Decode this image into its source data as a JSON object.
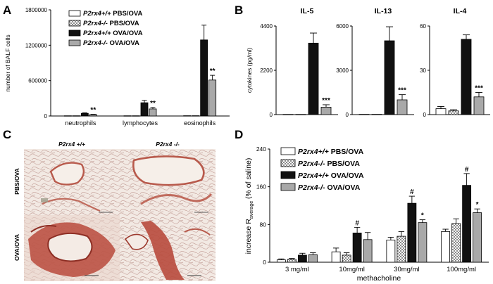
{
  "colors": {
    "white_fill": "#ffffff",
    "checker_fill": "#b8b8b8",
    "black_fill": "#111111",
    "gray_fill": "#a9a9a9",
    "tissue_red": "#b84a3c",
    "tissue_bg": "#efe4dc"
  },
  "panels": {
    "a": "A",
    "b": "B",
    "c": "C",
    "d": "D"
  },
  "legend": {
    "items": [
      {
        "genotype": "P2rx4+/+",
        "treatment": "PBS/OVA",
        "style": "white"
      },
      {
        "genotype": "P2rx4-/-",
        "treatment": "PBS/OVA",
        "style": "checker"
      },
      {
        "genotype": "P2rx4+/+",
        "treatment": "OVA/OVA",
        "style": "black"
      },
      {
        "genotype": "P2rx4-/-",
        "treatment": "OVA/OVA",
        "style": "gray"
      }
    ]
  },
  "histology": {
    "col_headers": [
      "P2rx4 +/+",
      "P2rx4 -/-"
    ],
    "row_labels": [
      "PBS/OVA",
      "OVA/OVA"
    ]
  },
  "chart_data": [
    {
      "id": "A",
      "type": "bar",
      "ylabel": "number of BALF cells",
      "ylim": [
        0,
        1800000
      ],
      "yticks": [
        0,
        600000,
        1200000,
        1800000
      ],
      "ytick_labels": [
        "0",
        "600000",
        "1200000",
        "1800000"
      ],
      "categories": [
        "neutrophils",
        "lymphocytes",
        "eosinophils"
      ],
      "series": [
        {
          "name": "P2rx4+/+ PBS/OVA",
          "values": [
            4000,
            4000,
            5000
          ],
          "errors": [
            0,
            0,
            0
          ]
        },
        {
          "name": "P2rx4-/- PBS/OVA",
          "values": [
            4000,
            4000,
            5000
          ],
          "errors": [
            0,
            0,
            0
          ]
        },
        {
          "name": "P2rx4+/+ OVA/OVA",
          "values": [
            45000,
            225000,
            1290000
          ],
          "errors": [
            8000,
            40000,
            250000
          ]
        },
        {
          "name": "P2rx4-/- OVA/OVA",
          "values": [
            25000,
            120000,
            610000
          ],
          "errors": [
            5000,
            25000,
            80000
          ]
        }
      ],
      "annotations": [
        {
          "category": "neutrophils",
          "series": 3,
          "text": "**"
        },
        {
          "category": "lymphocytes",
          "series": 3,
          "text": "**"
        },
        {
          "category": "eosinophils",
          "series": 3,
          "text": "**"
        }
      ]
    },
    {
      "id": "B-IL5",
      "type": "bar",
      "title": "IL-5",
      "ylabel": "cytokines (pg/ml)",
      "ylim": [
        0,
        4400
      ],
      "yticks": [
        0,
        2200,
        4400
      ],
      "ytick_labels": [
        "0",
        "2200",
        "4400"
      ],
      "series": [
        {
          "name": "P2rx4+/+ PBS/OVA",
          "values": [
            10
          ],
          "errors": [
            0
          ]
        },
        {
          "name": "P2rx4-/- PBS/OVA",
          "values": [
            10
          ],
          "errors": [
            0
          ]
        },
        {
          "name": "P2rx4+/+ OVA/OVA",
          "values": [
            3550
          ],
          "errors": [
            500
          ]
        },
        {
          "name": "P2rx4-/- OVA/OVA",
          "values": [
            370
          ],
          "errors": [
            120
          ]
        }
      ],
      "annotations": [
        {
          "series": 3,
          "text": "***"
        }
      ]
    },
    {
      "id": "B-IL13",
      "type": "bar",
      "title": "IL-13",
      "ylabel": "",
      "ylim": [
        0,
        6000
      ],
      "yticks": [
        0,
        3000,
        6000
      ],
      "ytick_labels": [
        "0",
        "3000",
        "6000"
      ],
      "series": [
        {
          "name": "P2rx4+/+ PBS/OVA",
          "values": [
            20
          ],
          "errors": [
            0
          ]
        },
        {
          "name": "P2rx4-/- PBS/OVA",
          "values": [
            20
          ],
          "errors": [
            0
          ]
        },
        {
          "name": "P2rx4+/+ OVA/OVA",
          "values": [
            5000
          ],
          "errors": [
            950
          ]
        },
        {
          "name": "P2rx4-/- OVA/OVA",
          "values": [
            1000
          ],
          "errors": [
            350
          ]
        }
      ],
      "annotations": [
        {
          "series": 3,
          "text": "***"
        }
      ]
    },
    {
      "id": "B-IL4",
      "type": "bar",
      "title": "IL-4",
      "ylabel": "",
      "ylim": [
        0,
        60
      ],
      "yticks": [
        0,
        30,
        60
      ],
      "ytick_labels": [
        "0",
        "30",
        "60"
      ],
      "series": [
        {
          "name": "P2rx4+/+ PBS/OVA",
          "values": [
            4
          ],
          "errors": [
            1.5
          ]
        },
        {
          "name": "P2rx4-/- PBS/OVA",
          "values": [
            2.5
          ],
          "errors": [
            0.8
          ]
        },
        {
          "name": "P2rx4+/+ OVA/OVA",
          "values": [
            51
          ],
          "errors": [
            3
          ]
        },
        {
          "name": "P2rx4-/- OVA/OVA",
          "values": [
            12
          ],
          "errors": [
            3
          ]
        }
      ],
      "annotations": [
        {
          "series": 3,
          "text": "***"
        }
      ]
    },
    {
      "id": "D",
      "type": "bar",
      "ylabel": "increase R",
      "ylabel_sub": "average",
      "ylabel_tail": " (% of saline)",
      "xlabel": "methacholine",
      "ylim": [
        0,
        240
      ],
      "yticks": [
        0,
        80,
        160,
        240
      ],
      "ytick_labels": [
        "0",
        "80",
        "160",
        "240"
      ],
      "categories": [
        "3 mg/ml",
        "10mg/ml",
        "30mg/ml",
        "100mg/ml"
      ],
      "series": [
        {
          "name": "P2rx4+/+ PBS/OVA",
          "values": [
            5,
            22,
            47,
            65
          ],
          "errors": [
            2,
            8,
            6,
            5
          ]
        },
        {
          "name": "P2rx4-/- PBS/OVA",
          "values": [
            6,
            15,
            55,
            82
          ],
          "errors": [
            2,
            5,
            10,
            10
          ]
        },
        {
          "name": "P2rx4+/+ OVA/OVA",
          "values": [
            15,
            62,
            125,
            163
          ],
          "errors": [
            4,
            12,
            15,
            25
          ]
        },
        {
          "name": "P2rx4-/- OVA/OVA",
          "values": [
            16,
            48,
            84,
            105
          ],
          "errors": [
            4,
            15,
            6,
            8
          ]
        }
      ],
      "annotations": [
        {
          "category": "10mg/ml",
          "series": 2,
          "text": "#"
        },
        {
          "category": "30mg/ml",
          "series": 2,
          "text": "#"
        },
        {
          "category": "30mg/ml",
          "series": 3,
          "text": "*"
        },
        {
          "category": "100mg/ml",
          "series": 2,
          "text": "#"
        },
        {
          "category": "100mg/ml",
          "series": 3,
          "text": "*"
        }
      ]
    }
  ]
}
